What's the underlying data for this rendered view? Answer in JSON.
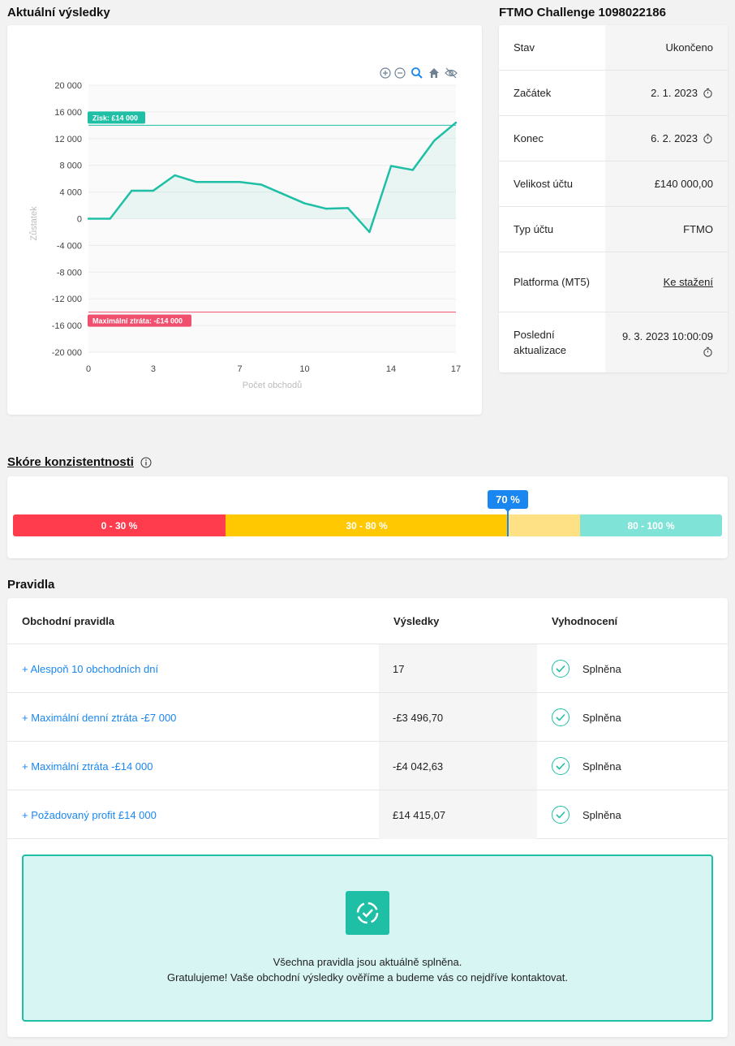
{
  "chart_section": {
    "title": "Aktuální výsledky"
  },
  "chart_data": {
    "type": "line",
    "x": [
      0,
      1,
      2,
      3,
      4,
      5,
      6,
      7,
      8,
      9,
      10,
      11,
      12,
      13,
      14,
      15,
      16,
      17
    ],
    "values": [
      0,
      0,
      4200,
      4200,
      6500,
      5500,
      5500,
      5500,
      5100,
      3700,
      2300,
      1500,
      1600,
      -2000,
      7900,
      7300,
      11700,
      14400
    ],
    "xlabel": "Počet obchodů",
    "ylabel": "Zůstatek",
    "xticks": [
      "0",
      "3",
      "7",
      "10",
      "14",
      "17"
    ],
    "xtick_values": [
      0,
      3,
      7,
      10,
      14,
      17
    ],
    "yticks": [
      "20 000",
      "16 000",
      "12 000",
      "8 000",
      "4 000",
      "0",
      "-4 000",
      "-8 000",
      "-12 000",
      "-16 000",
      "-20 000"
    ],
    "ytick_values": [
      20000,
      16000,
      12000,
      8000,
      4000,
      0,
      -4000,
      -8000,
      -12000,
      -16000,
      -20000
    ],
    "xlim": [
      0,
      17
    ],
    "ylim": [
      -20000,
      20000
    ],
    "annotations": [
      {
        "label": "Zisk: £14 000",
        "y": 14000,
        "color": "#1fbfa6"
      },
      {
        "label": "Maximální ztráta: -£14 000",
        "y": -14000,
        "color": "#f0506e"
      }
    ],
    "line_color": "#1fbfa6",
    "toolbar": [
      "zoom-in-icon",
      "zoom-out-icon",
      "magnifier-icon",
      "home-icon",
      "hide-icon"
    ]
  },
  "info": {
    "title": "FTMO Challenge 1098022186",
    "rows": [
      {
        "label": "Stav",
        "value": "Ukončeno"
      },
      {
        "label": "Začátek",
        "value": "2. 1. 2023"
      },
      {
        "label": "Konec",
        "value": "6. 2. 2023"
      },
      {
        "label": "Velikost účtu",
        "value": "£140 000,00"
      },
      {
        "label": "Typ účtu",
        "value": "FTMO"
      },
      {
        "label": "Platforma (MT5)",
        "value": "Ke stažení"
      },
      {
        "label": "Poslední aktualizace",
        "value": "9. 3. 2023 10:00:09"
      }
    ]
  },
  "consistency": {
    "title": "Skóre konzistentnosti",
    "score": "70 %",
    "score_fraction": 0.7,
    "segments": [
      "0 - 30 %",
      "30 - 80 %",
      "80 - 100 %"
    ],
    "colors": {
      "red": "#ff3b4e",
      "yellow": "#ffc800",
      "yellow_light": "#ffe185",
      "teal": "#80e3d8",
      "marker": "#1a87f0"
    }
  },
  "rules": {
    "title": "Pravidla",
    "headers": [
      "Obchodní pravidla",
      "Výsledky",
      "Vyhodnocení"
    ],
    "rows": [
      {
        "name": "+ Alespoň 10 obchodních dní",
        "result": "17",
        "status": "Splněna"
      },
      {
        "name": "+ Maximální denní ztráta -£7 000",
        "result": "-£3 496,70",
        "status": "Splněna"
      },
      {
        "name": "+ Maximální ztráta -£14 000",
        "result": "-£4 042,63",
        "status": "Splněna"
      },
      {
        "name": "+ Požadovaný profit £14 000",
        "result": "£14 415,07",
        "status": "Splněna"
      }
    ],
    "success": {
      "line1": "Všechna pravidla jsou aktuálně splněna.",
      "line2": "Gratulujeme! Vaše obchodní výsledky ověříme a budeme vás co nejdříve kontaktovat."
    }
  }
}
